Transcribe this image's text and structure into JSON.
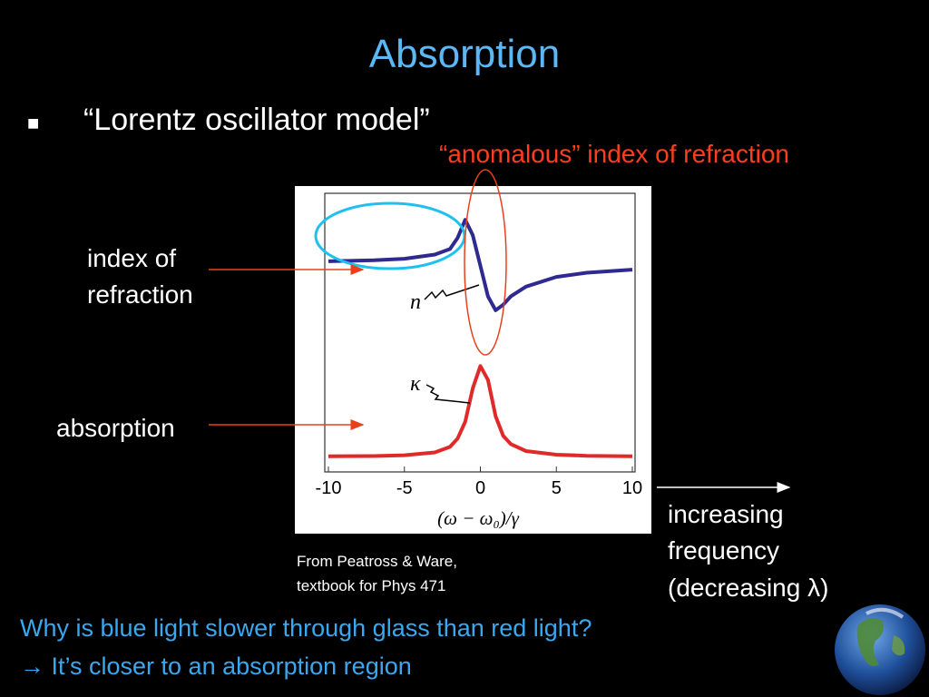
{
  "title": "Absorption",
  "bullet": {
    "marker": "■",
    "text": "“Lorentz oscillator model”"
  },
  "annotation": "“anomalous” index of refraction",
  "labels": {
    "index": [
      "index of",
      "refraction"
    ],
    "absorption": "absorption",
    "frequency": [
      "increasing",
      "frequency",
      "(decreasing λ)"
    ]
  },
  "source": [
    "From Peatross & Ware,",
    "textbook for Phys 471"
  ],
  "question": "Why is blue light slower through glass than red light?",
  "answer": "→ It’s closer to an absorption region",
  "chart_data": {
    "type": "line",
    "xlabel": "(ω − ω₀)/γ",
    "xlim": [
      -10,
      10
    ],
    "xticks": [
      -10,
      -5,
      0,
      5,
      10
    ],
    "ylim": [
      0,
      1
    ],
    "x": [
      -10,
      -7,
      -5,
      -3,
      -2,
      -1.5,
      -1,
      -0.5,
      0,
      0.5,
      1,
      1.5,
      2,
      3,
      5,
      7,
      10
    ],
    "series": [
      {
        "name": "n",
        "color": "#2e2a8f",
        "values": [
          0.756,
          0.76,
          0.765,
          0.78,
          0.8,
          0.84,
          0.905,
          0.85,
          0.74,
          0.63,
          0.58,
          0.6,
          0.63,
          0.665,
          0.7,
          0.715,
          0.726
        ]
      },
      {
        "name": "κ",
        "color": "#e02a2a",
        "values": [
          0.056,
          0.057,
          0.06,
          0.07,
          0.09,
          0.12,
          0.18,
          0.3,
          0.38,
          0.33,
          0.2,
          0.13,
          0.1,
          0.075,
          0.062,
          0.058,
          0.056
        ]
      }
    ]
  }
}
